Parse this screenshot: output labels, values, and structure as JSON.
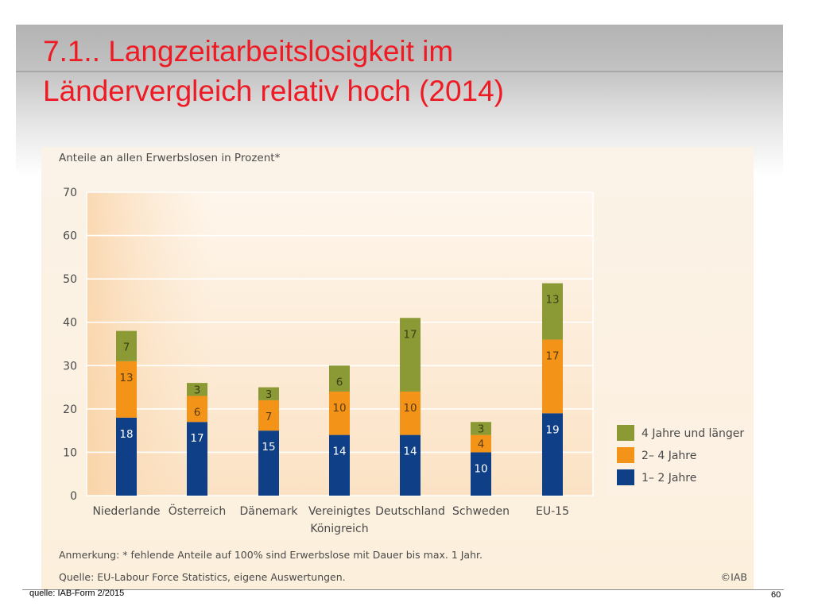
{
  "slide": {
    "title_line1": "7.1.. Langzeitarbeitslosigkeit im",
    "title_line2": "Ländervergleich relativ hoch (2014)",
    "footer_source": "quelle: IAB-Form 2/2015",
    "page_number": "60"
  },
  "chart_data": {
    "type": "bar",
    "stacked": true,
    "subtitle": "Anteile an allen Erwerbslosen in Prozent*",
    "categories": [
      "Niederlande",
      "Österreich",
      "Dänemark",
      "Vereinigtes Königreich",
      "Deutschland",
      "Schweden",
      "EU-15"
    ],
    "category_lines": [
      [
        "Niederlande"
      ],
      [
        "Österreich"
      ],
      [
        "Dänemark"
      ],
      [
        "Vereinigtes",
        "Königreich"
      ],
      [
        "Deutschland"
      ],
      [
        "Schweden"
      ],
      [
        "EU-15"
      ]
    ],
    "series": [
      {
        "name": "1– 2 Jahre",
        "color": "#0f3f87",
        "values": [
          18,
          17,
          15,
          14,
          14,
          10,
          19
        ]
      },
      {
        "name": "2– 4 Jahre",
        "color": "#f39419",
        "values": [
          13,
          6,
          7,
          10,
          10,
          4,
          17
        ]
      },
      {
        "name": "4 Jahre und länger",
        "color": "#8c9a36",
        "values": [
          7,
          3,
          3,
          6,
          17,
          3,
          13
        ]
      }
    ],
    "ylim": [
      0,
      70
    ],
    "yticks": [
      0,
      10,
      20,
      30,
      40,
      50,
      60,
      70
    ],
    "grid": true,
    "legend_position": "right",
    "legend_order": [
      "4 Jahre und länger",
      "2– 4 Jahre",
      "1– 2 Jahre"
    ],
    "note": "Anmerkung: * fehlende Anteile auf 100% sind Erwerbslose mit Dauer bis max. 1 Jahr.",
    "source": "Quelle: EU-Labour Force Statistics, eigene Auswertungen.",
    "copyright": "©IAB"
  }
}
